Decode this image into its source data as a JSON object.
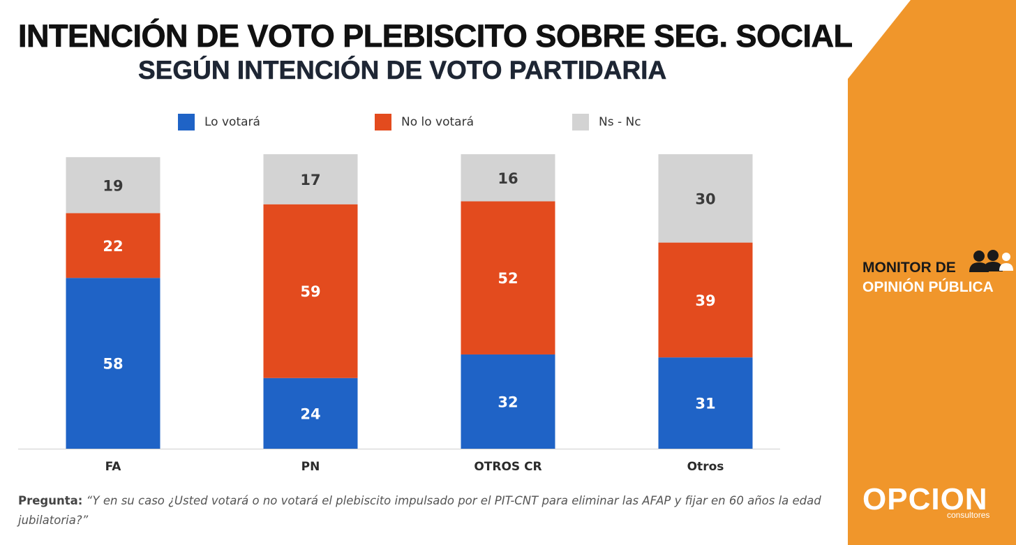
{
  "chart_data": {
    "type": "bar",
    "stacked": true,
    "title": "INTENCIÓN DE VOTO PLEBISCITO SOBRE SEG. SOCIAL",
    "subtitle": "SEGÚN INTENCIÓN DE VOTO PARTIDARIA",
    "categories": [
      "FA",
      "PN",
      "OTROS CR",
      "Otros"
    ],
    "series": [
      {
        "name": "Lo votará",
        "color": "#1f63c6",
        "values": [
          58,
          24,
          32,
          31
        ]
      },
      {
        "name": "No lo votará",
        "color": "#e34b1e",
        "values": [
          22,
          59,
          52,
          39
        ]
      },
      {
        "name": "Ns - Nc",
        "color": "#d3d3d3",
        "values": [
          19,
          17,
          16,
          30
        ]
      }
    ],
    "legend_position": "top",
    "grid": false
  },
  "footnote": {
    "label": "Pregunta:",
    "text": "“Y en su caso ¿Usted votará o no votará el plebiscito impulsado por el PIT-CNT para eliminar las AFAP y fijar en 60 años la edad jubilatoria?”"
  },
  "brand": {
    "monitor_line1": "MONITOR DE",
    "monitor_line2": "OPINIÓN PÚBLICA",
    "logo": "OPCION",
    "logo_sub": "consultores",
    "panel_color": "#f0962b",
    "icon": "people-icon"
  }
}
